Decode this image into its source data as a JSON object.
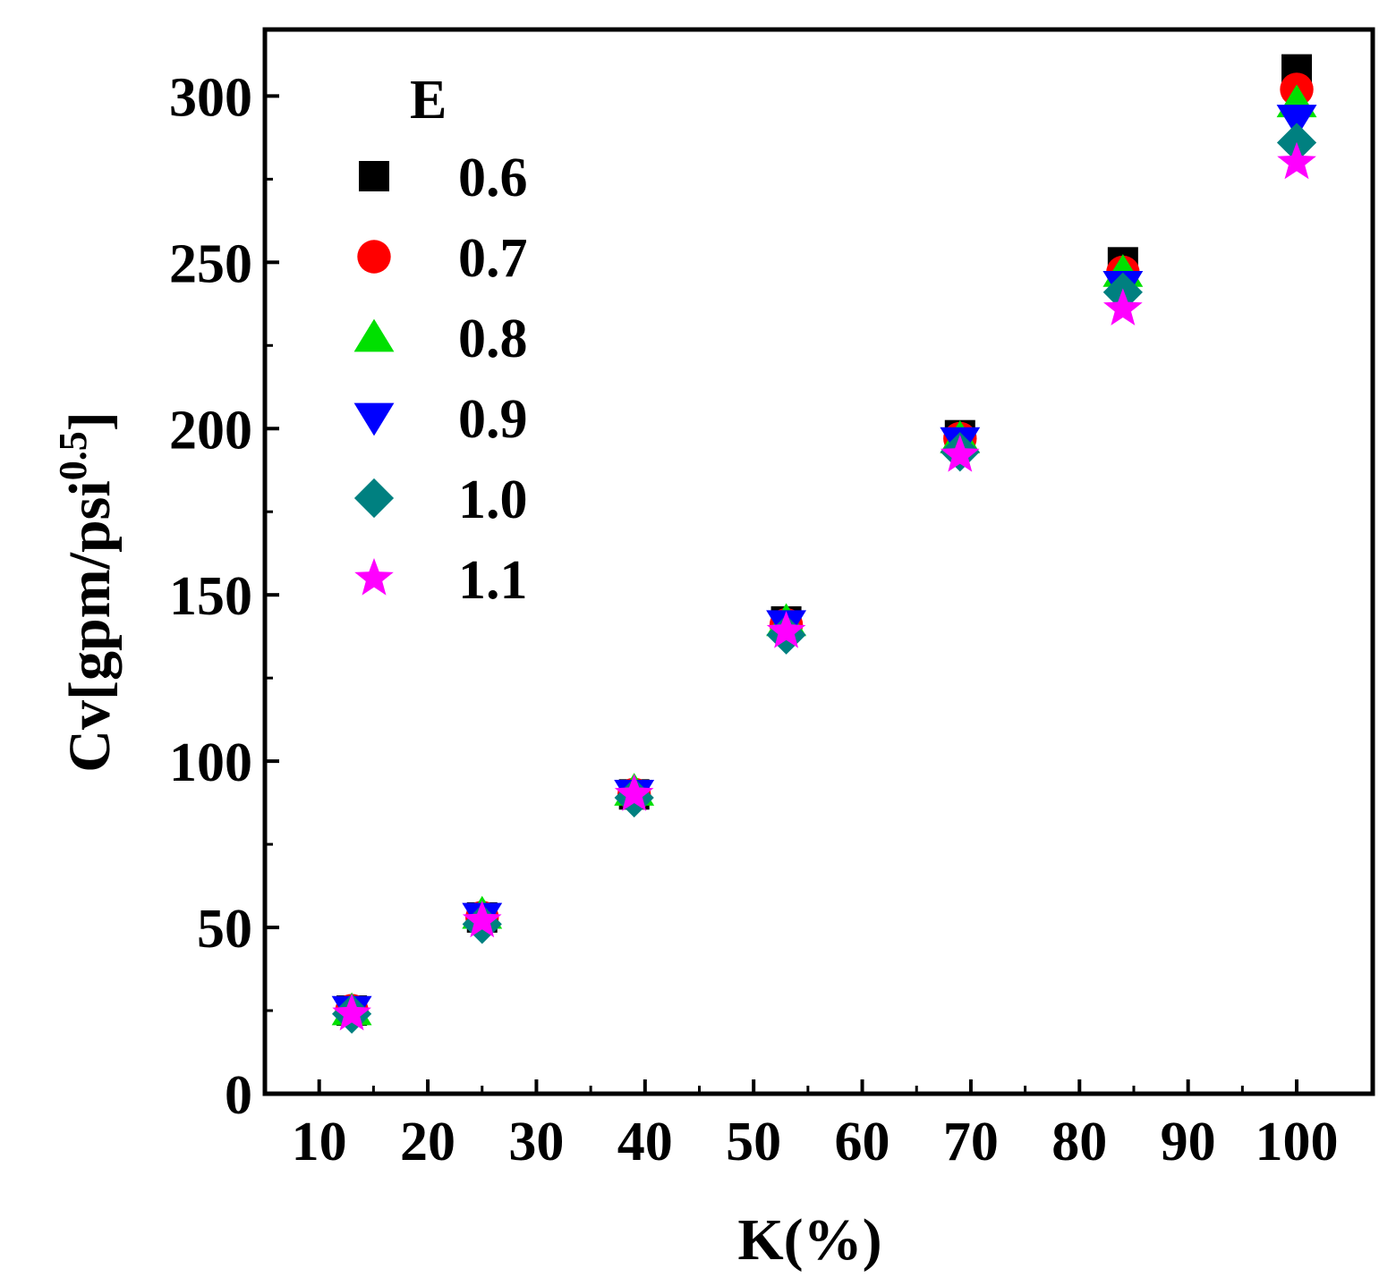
{
  "chart_data": {
    "type": "scatter",
    "xlabel": "K(%)",
    "ylabel": "Cv[gpm/psi",
    "ylabel_sup": "0.5",
    "ylabel_close": "]",
    "xlim": [
      5,
      107
    ],
    "ylim": [
      0,
      320
    ],
    "x_ticks": [
      10,
      20,
      30,
      40,
      50,
      60,
      70,
      80,
      90,
      100
    ],
    "y_ticks": [
      0,
      50,
      100,
      150,
      200,
      250,
      300
    ],
    "legend_title": "E",
    "legend_position": "top-left",
    "grid": false,
    "x": [
      13,
      25,
      39,
      53,
      69,
      84,
      100
    ],
    "series": [
      {
        "name": "0.6",
        "marker": "square",
        "color": "#000000",
        "values": [
          25,
          53,
          90,
          142,
          198,
          250,
          308
        ]
      },
      {
        "name": "0.7",
        "marker": "circle",
        "color": "#ff0000",
        "values": [
          25,
          53,
          90,
          141,
          197,
          247,
          302
        ]
      },
      {
        "name": "0.8",
        "marker": "triangle-up",
        "color": "#00e000",
        "values": [
          25,
          54,
          91,
          142,
          197,
          247,
          298
        ]
      },
      {
        "name": "0.9",
        "marker": "triangle-down",
        "color": "#0000ff",
        "values": [
          25,
          53,
          90,
          141,
          196,
          243,
          293
        ]
      },
      {
        "name": "1.0",
        "marker": "diamond",
        "color": "#008080",
        "values": [
          24,
          51,
          89,
          138,
          193,
          241,
          286
        ]
      },
      {
        "name": "1.1",
        "marker": "star",
        "color": "#ff00ff",
        "values": [
          24,
          52,
          90,
          139,
          192,
          236,
          280
        ]
      }
    ]
  }
}
